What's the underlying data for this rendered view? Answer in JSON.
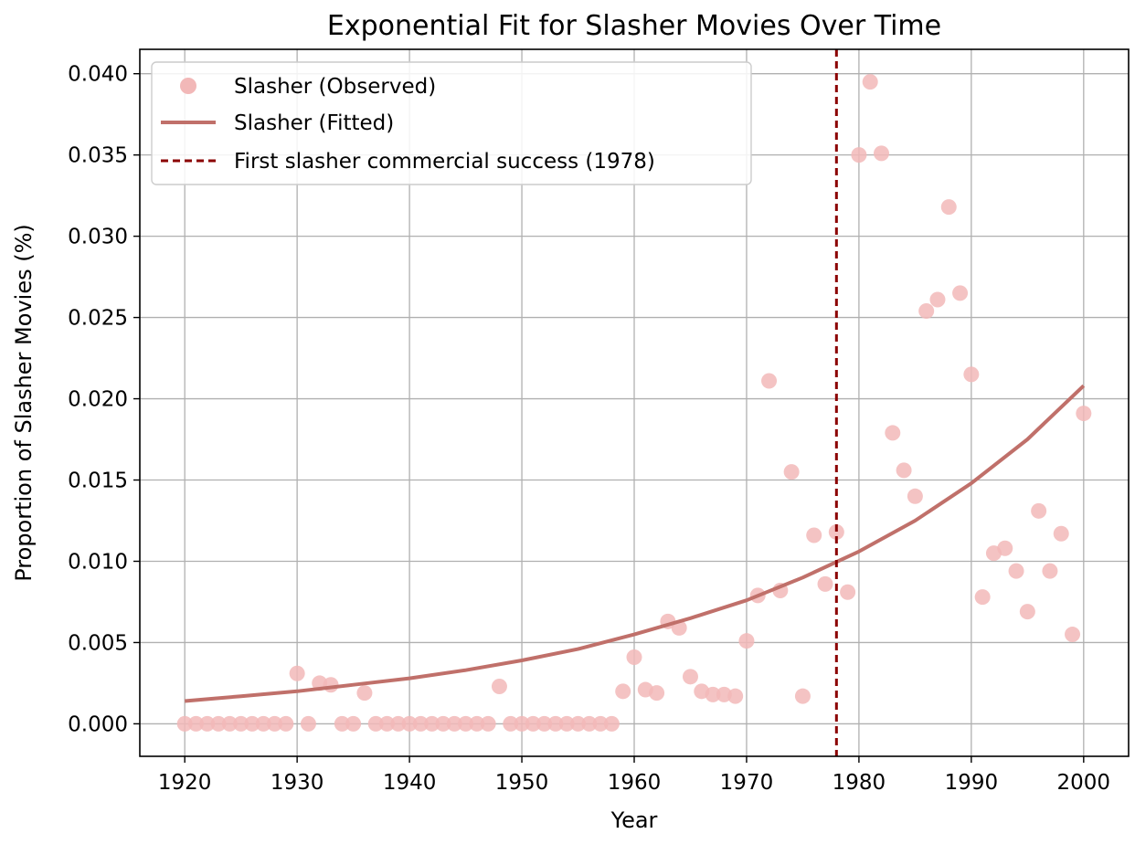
{
  "chart_data": {
    "type": "scatter",
    "title": "Exponential Fit for Slasher Movies Over Time",
    "xlabel": "Year",
    "ylabel": "Proportion of Slasher Movies (%)",
    "xlim": [
      1916,
      2004
    ],
    "ylim": [
      -0.002,
      0.0415
    ],
    "xticks": [
      1920,
      1930,
      1940,
      1950,
      1960,
      1970,
      1980,
      1990,
      2000
    ],
    "xtick_labels": [
      "1920",
      "1930",
      "1940",
      "1950",
      "1960",
      "1970",
      "1980",
      "1990",
      "2000"
    ],
    "yticks": [
      0,
      0.005,
      0.01,
      0.015,
      0.02,
      0.025,
      0.03,
      0.035,
      0.04
    ],
    "ytick_labels": [
      "0.000",
      "0.005",
      "0.010",
      "0.015",
      "0.020",
      "0.025",
      "0.030",
      "0.035",
      "0.040"
    ],
    "grid": true,
    "legend_position": "top-left",
    "series": [
      {
        "name": "Slasher (Observed)",
        "kind": "scatter",
        "color": "#f2b8b8",
        "x": [
          1920,
          1921,
          1922,
          1923,
          1924,
          1925,
          1926,
          1927,
          1928,
          1929,
          1930,
          1931,
          1932,
          1933,
          1934,
          1935,
          1936,
          1937,
          1938,
          1939,
          1940,
          1941,
          1942,
          1943,
          1944,
          1945,
          1946,
          1947,
          1948,
          1949,
          1950,
          1951,
          1952,
          1953,
          1954,
          1955,
          1956,
          1957,
          1958,
          1959,
          1960,
          1961,
          1962,
          1963,
          1964,
          1965,
          1966,
          1967,
          1968,
          1969,
          1970,
          1971,
          1972,
          1973,
          1974,
          1975,
          1976,
          1977,
          1978,
          1979,
          1980,
          1981,
          1982,
          1983,
          1984,
          1985,
          1986,
          1987,
          1988,
          1989,
          1990,
          1991,
          1992,
          1993,
          1994,
          1995,
          1996,
          1997,
          1998,
          1999,
          2000
        ],
        "y": [
          0,
          0,
          0,
          0,
          0,
          0,
          0,
          0,
          0,
          0,
          0.0031,
          0,
          0.0025,
          0.0024,
          0,
          0,
          0.0019,
          0,
          0,
          0,
          0,
          0,
          0,
          0,
          0,
          0,
          0,
          0,
          0.0023,
          0,
          0,
          0,
          0,
          0,
          0,
          0,
          0,
          0,
          0,
          0.002,
          0.0041,
          0.0021,
          0.0019,
          0.0063,
          0.0059,
          0.0029,
          0.002,
          0.0018,
          0.0018,
          0.0017,
          0.0051,
          0.0079,
          0.0211,
          0.0082,
          0.0155,
          0.0017,
          0.0116,
          0.0086,
          0.0118,
          0.0081,
          0.035,
          0.0395,
          0.0351,
          0.0179,
          0.0156,
          0.014,
          0.0254,
          0.0261,
          0.0318,
          0.0265,
          0.0215,
          0.0078,
          0.0105,
          0.0108,
          0.0094,
          0.0069,
          0.0131,
          0.0094,
          0.0117,
          0.0055,
          0.0191
        ]
      },
      {
        "name": "Slasher (Fitted)",
        "kind": "line",
        "color": "#c0706a",
        "x": [
          1920,
          1925,
          1930,
          1935,
          1940,
          1945,
          1950,
          1955,
          1960,
          1965,
          1970,
          1975,
          1980,
          1985,
          1990,
          1995,
          2000
        ],
        "y": [
          0.0014,
          0.0017,
          0.002,
          0.0024,
          0.0028,
          0.0033,
          0.0039,
          0.0046,
          0.0055,
          0.0065,
          0.0076,
          0.009,
          0.0106,
          0.0125,
          0.0148,
          0.0175,
          0.0208
        ]
      },
      {
        "name": "First slasher commercial success (1978)",
        "kind": "vline",
        "color": "#8b0000",
        "x": 1978
      }
    ]
  }
}
